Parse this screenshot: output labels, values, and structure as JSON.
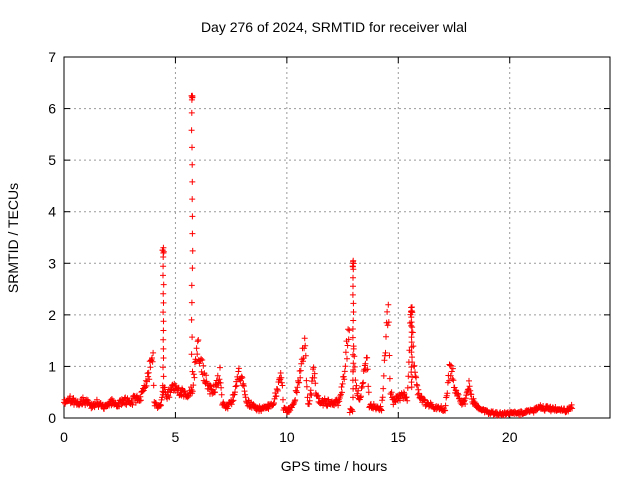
{
  "chart_data": {
    "type": "scatter",
    "title": "Day 276 of 2024, SRMTID for receiver wlal",
    "xlabel": "GPS time / hours",
    "ylabel": "SRMTID / TECUs",
    "xlim": [
      0,
      24.5
    ],
    "ylim": [
      0,
      7
    ],
    "x_ticks": [
      0,
      5,
      10,
      15,
      20
    ],
    "y_ticks": [
      0,
      1,
      2,
      3,
      4,
      5,
      6,
      7
    ],
    "grid": true,
    "marker": "+",
    "color": "#ff0000",
    "profile": [
      [
        0.0,
        0.28
      ],
      [
        0.3,
        0.36
      ],
      [
        0.6,
        0.27
      ],
      [
        0.9,
        0.34
      ],
      [
        1.2,
        0.25
      ],
      [
        1.5,
        0.3
      ],
      [
        1.8,
        0.22
      ],
      [
        2.1,
        0.32
      ],
      [
        2.4,
        0.26
      ],
      [
        2.7,
        0.33
      ],
      [
        3.0,
        0.3
      ],
      [
        3.2,
        0.38
      ],
      [
        3.4,
        0.33
      ],
      [
        3.6,
        0.55
      ],
      [
        3.8,
        0.9
      ],
      [
        4.0,
        1.12
      ],
      [
        4.05,
        0.3
      ],
      [
        4.2,
        0.2
      ],
      [
        4.35,
        0.25
      ],
      [
        4.45,
        0.6
      ],
      [
        4.6,
        0.45
      ],
      [
        4.8,
        0.55
      ],
      [
        5.0,
        0.62
      ],
      [
        5.2,
        0.48
      ],
      [
        5.4,
        0.5
      ],
      [
        5.55,
        0.38
      ],
      [
        5.75,
        0.55
      ],
      [
        6.0,
        1.3
      ],
      [
        6.1,
        1.2
      ],
      [
        6.3,
        0.8
      ],
      [
        6.5,
        0.6
      ],
      [
        6.7,
        0.55
      ],
      [
        6.9,
        0.75
      ],
      [
        7.0,
        0.9
      ],
      [
        7.1,
        0.3
      ],
      [
        7.3,
        0.22
      ],
      [
        7.5,
        0.3
      ],
      [
        7.7,
        0.55
      ],
      [
        7.85,
        0.9
      ],
      [
        8.0,
        0.7
      ],
      [
        8.2,
        0.3
      ],
      [
        8.5,
        0.22
      ],
      [
        8.8,
        0.18
      ],
      [
        9.1,
        0.2
      ],
      [
        9.4,
        0.28
      ],
      [
        9.6,
        0.6
      ],
      [
        9.75,
        0.92
      ],
      [
        9.85,
        0.15
      ],
      [
        10.1,
        0.15
      ],
      [
        10.3,
        0.25
      ],
      [
        10.5,
        0.7
      ],
      [
        10.7,
        1.2
      ],
      [
        10.8,
        1.5
      ],
      [
        10.95,
        0.25
      ],
      [
        11.1,
        0.5
      ],
      [
        11.2,
        1.0
      ],
      [
        11.3,
        0.5
      ],
      [
        11.5,
        0.28
      ],
      [
        11.7,
        0.32
      ],
      [
        12.0,
        0.28
      ],
      [
        12.3,
        0.3
      ],
      [
        12.5,
        0.6
      ],
      [
        12.65,
        1.2
      ],
      [
        12.8,
        1.75
      ],
      [
        12.82,
        0.15
      ],
      [
        12.95,
        0.15
      ],
      [
        13.0,
        1.5
      ],
      [
        13.1,
        0.6
      ],
      [
        13.3,
        0.35
      ],
      [
        13.45,
        0.8
      ],
      [
        13.6,
        1.15
      ],
      [
        13.7,
        0.25
      ],
      [
        13.9,
        0.22
      ],
      [
        14.1,
        0.2
      ],
      [
        14.25,
        0.18
      ],
      [
        14.35,
        0.8
      ],
      [
        14.45,
        1.8
      ],
      [
        14.55,
        2.2
      ],
      [
        14.65,
        0.5
      ],
      [
        14.8,
        0.32
      ],
      [
        15.0,
        0.38
      ],
      [
        15.2,
        0.45
      ],
      [
        15.4,
        0.4
      ],
      [
        15.5,
        1.5
      ],
      [
        15.6,
        2.1
      ],
      [
        15.7,
        1.0
      ],
      [
        15.85,
        0.55
      ],
      [
        16.0,
        0.4
      ],
      [
        16.3,
        0.28
      ],
      [
        16.6,
        0.22
      ],
      [
        16.9,
        0.18
      ],
      [
        17.1,
        0.15
      ],
      [
        17.3,
        0.95
      ],
      [
        17.45,
        0.8
      ],
      [
        17.6,
        0.45
      ],
      [
        17.8,
        0.3
      ],
      [
        18.0,
        0.3
      ],
      [
        18.15,
        0.65
      ],
      [
        18.3,
        0.35
      ],
      [
        18.6,
        0.2
      ],
      [
        19.0,
        0.12
      ],
      [
        19.4,
        0.08
      ],
      [
        19.8,
        0.08
      ],
      [
        20.2,
        0.1
      ],
      [
        20.6,
        0.1
      ],
      [
        21.0,
        0.14
      ],
      [
        21.4,
        0.2
      ],
      [
        21.8,
        0.18
      ],
      [
        22.2,
        0.15
      ],
      [
        22.5,
        0.14
      ],
      [
        22.8,
        0.2
      ]
    ],
    "spikes": [
      [
        4.45,
        0.45,
        3.3
      ],
      [
        5.75,
        0.9,
        6.25
      ],
      [
        12.98,
        0.4,
        3.05
      ],
      [
        15.6,
        0.6,
        2.15
      ]
    ],
    "x_range_data": [
      0.0,
      22.8
    ]
  }
}
